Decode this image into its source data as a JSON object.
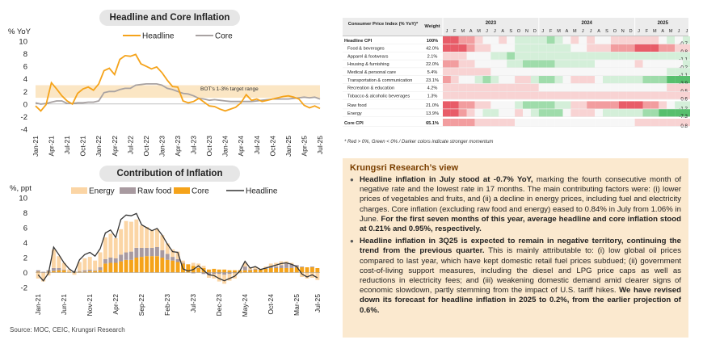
{
  "chart_data": [
    {
      "type": "line",
      "title": "Headline and Core Inflation",
      "ylabel": "% YoY",
      "ylim": [
        -4,
        10
      ],
      "yticks": [
        -4,
        -2,
        0,
        2,
        4,
        6,
        8,
        10
      ],
      "xticks": [
        "Jan-21",
        "Apr-21",
        "Jul-21",
        "Oct-21",
        "Jan-22",
        "Apr-22",
        "Jul-22",
        "Oct-22",
        "Jan-23",
        "Apr-23",
        "Jul-23",
        "Oct-23",
        "Jan-24",
        "Apr-24",
        "Jul-24",
        "Oct-24",
        "Jan-25",
        "Apr-25",
        "Jul-25"
      ],
      "band": {
        "low": 1,
        "high": 3,
        "label": "BOT's 1-3% target range"
      },
      "series": [
        {
          "name": "Headline",
          "color": "#f5a31a",
          "values": [
            -0.3,
            -1.1,
            -0.1,
            3.4,
            2.4,
            1.3,
            0.5,
            0.0,
            1.7,
            2.4,
            2.7,
            2.2,
            3.2,
            5.3,
            5.7,
            4.7,
            7.1,
            7.7,
            7.6,
            7.9,
            6.4,
            6.0,
            5.6,
            5.9,
            5.0,
            3.8,
            2.8,
            2.7,
            0.5,
            0.2,
            0.4,
            0.9,
            0.3,
            -0.3,
            -0.4,
            -0.8,
            -1.1,
            -0.8,
            -0.5,
            0.2,
            1.5,
            0.6,
            0.8,
            0.4,
            0.6,
            0.8,
            1.0,
            1.2,
            1.3,
            1.1,
            0.8,
            -0.2,
            -0.6,
            -0.3,
            -0.7
          ]
        },
        {
          "name": "Core",
          "color": "#a8a2a2",
          "values": [
            0.2,
            0.0,
            0.1,
            0.3,
            0.5,
            0.5,
            0.1,
            0.1,
            0.2,
            0.2,
            0.3,
            0.3,
            0.5,
            1.8,
            2.0,
            2.0,
            2.3,
            2.5,
            2.5,
            3.0,
            3.1,
            3.2,
            3.2,
            3.2,
            3.0,
            2.5,
            2.3,
            2.0,
            1.7,
            1.6,
            1.3,
            0.9,
            0.8,
            0.6,
            0.7,
            0.6,
            0.5,
            0.4,
            0.4,
            0.4,
            0.4,
            0.4,
            0.5,
            0.6,
            0.7,
            0.8,
            0.8,
            0.8,
            0.8,
            0.9,
            1.0,
            1.1,
            1.0,
            1.1,
            0.8
          ]
        }
      ]
    },
    {
      "type": "bar",
      "title": "Contribution of Inflation",
      "ylabel": "%, ppt",
      "ylim": [
        -2,
        10
      ],
      "yticks": [
        -2,
        0,
        2,
        4,
        6,
        8,
        10
      ],
      "xticks": [
        "Jan-21",
        "Jun-21",
        "Nov-21",
        "Apr-22",
        "Sep-22",
        "Feb-23",
        "Jul-23",
        "Dec-23",
        "May-24",
        "Oct-24",
        "Mar-25",
        "Jul-25"
      ],
      "series": [
        {
          "name": "Energy",
          "color": "#fbd5a5",
          "values": [
            -0.8,
            -1.2,
            -0.4,
            2.5,
            1.6,
            0.9,
            0.3,
            -0.3,
            1.2,
            1.6,
            1.7,
            1.3,
            2.0,
            2.9,
            3.2,
            2.7,
            3.4,
            4.2,
            4.0,
            3.8,
            3.0,
            2.8,
            2.4,
            2.4,
            2.0,
            1.4,
            1.0,
            1.0,
            0.3,
            0.0,
            0.4,
            0.6,
            0.3,
            -0.4,
            -0.6,
            -1.0,
            -1.2,
            -0.9,
            -0.7,
            -0.1,
            0.5,
            0.3,
            0.3,
            0.0,
            0.2,
            0.4,
            0.5,
            0.5,
            0.3,
            0.2,
            0.0,
            -0.6,
            -0.8,
            -0.7,
            -1.0
          ]
        },
        {
          "name": "Raw food",
          "color": "#a89aa0",
          "values": [
            0.2,
            0.1,
            0.2,
            0.4,
            0.3,
            0.1,
            0.0,
            0.1,
            0.1,
            0.2,
            0.2,
            0.1,
            0.4,
            0.6,
            0.7,
            0.6,
            0.9,
            1.0,
            1.1,
            1.3,
            1.2,
            1.1,
            1.1,
            1.2,
            1.0,
            0.8,
            0.5,
            0.4,
            0.1,
            0.0,
            -0.1,
            0.0,
            -0.2,
            -0.3,
            -0.2,
            -0.2,
            -0.3,
            -0.2,
            -0.1,
            0.0,
            0.5,
            0.1,
            0.1,
            0.1,
            0.1,
            0.2,
            0.2,
            0.4,
            0.6,
            0.5,
            0.3,
            0.1,
            0.0,
            0.1,
            0.0
          ]
        },
        {
          "name": "Core",
          "color": "#f5a31a",
          "values": [
            0.1,
            0.0,
            0.1,
            0.2,
            0.3,
            0.3,
            0.1,
            0.1,
            0.1,
            0.1,
            0.2,
            0.2,
            0.3,
            1.2,
            1.3,
            1.3,
            1.5,
            1.7,
            1.7,
            2.0,
            2.1,
            2.2,
            2.2,
            2.2,
            2.0,
            1.7,
            1.6,
            1.4,
            1.2,
            1.1,
            0.9,
            0.6,
            0.6,
            0.4,
            0.5,
            0.4,
            0.4,
            0.3,
            0.3,
            0.3,
            0.3,
            0.3,
            0.4,
            0.4,
            0.5,
            0.6,
            0.6,
            0.6,
            0.6,
            0.6,
            0.7,
            0.7,
            0.7,
            0.7,
            0.6
          ]
        },
        {
          "name": "Headline",
          "color": "#333333",
          "values": [
            -0.3,
            -1.1,
            -0.1,
            3.4,
            2.4,
            1.3,
            0.5,
            0.0,
            1.7,
            2.4,
            2.7,
            2.2,
            3.2,
            5.3,
            5.7,
            4.7,
            7.1,
            7.7,
            7.6,
            7.9,
            6.4,
            6.0,
            5.6,
            5.9,
            5.0,
            3.8,
            2.8,
            2.7,
            0.5,
            0.2,
            0.4,
            0.9,
            0.3,
            -0.3,
            -0.4,
            -0.8,
            -1.1,
            -0.8,
            -0.5,
            0.2,
            1.5,
            0.6,
            0.8,
            0.4,
            0.6,
            0.8,
            1.0,
            1.2,
            1.3,
            1.1,
            0.8,
            -0.2,
            -0.6,
            -0.3,
            -0.7
          ]
        }
      ]
    },
    {
      "type": "heatmap",
      "header": {
        "label": "Consumer Price Index (% YoY)*",
        "weight": "Weight"
      },
      "years": [
        "2023",
        "2024",
        "2025"
      ],
      "months": [
        "J",
        "F",
        "M",
        "A",
        "M",
        "J",
        "J",
        "A",
        "S",
        "O",
        "N",
        "D",
        "J",
        "F",
        "M",
        "A",
        "M",
        "J",
        "J",
        "A",
        "S",
        "O",
        "N",
        "D",
        "J",
        "F",
        "M",
        "A",
        "M",
        "J",
        "J"
      ],
      "rows": [
        {
          "name": "Headline CPI",
          "weight": "100%",
          "bold": true,
          "latest": "-0.7",
          "scores": [
            3,
            3,
            2,
            2,
            1,
            0,
            0,
            1,
            0,
            -1,
            -1,
            -1,
            -1,
            -2,
            -1,
            0,
            1,
            0,
            1,
            0,
            0,
            1,
            1,
            1,
            1,
            1,
            1,
            0,
            -1,
            0,
            -1
          ]
        },
        {
          "name": "Food & beverages",
          "weight": "42.0%",
          "bold": false,
          "latest": "0.8",
          "scores": [
            3,
            3,
            3,
            2,
            1,
            1,
            0,
            0,
            0,
            -1,
            -1,
            -1,
            -1,
            -1,
            -1,
            -1,
            0,
            0,
            1,
            1,
            1,
            2,
            2,
            2,
            3,
            3,
            3,
            2,
            2,
            1,
            1
          ]
        },
        {
          "name": "Apparel & footwears",
          "weight": "2.1%",
          "bold": false,
          "latest": "-1.1",
          "scores": [
            1,
            1,
            1,
            0,
            0,
            0,
            -1,
            -1,
            -2,
            -1,
            -1,
            -1,
            -1,
            -1,
            -1,
            -1,
            -1,
            -1,
            -1,
            -1,
            -1,
            -1,
            -1,
            -1,
            -1,
            -1,
            -1,
            -1,
            -1,
            -1,
            -1
          ]
        },
        {
          "name": "Housing & furnishing",
          "weight": "22.0%",
          "bold": false,
          "latest": "-0.2",
          "scores": [
            2,
            2,
            1,
            1,
            0,
            0,
            0,
            0,
            -1,
            -1,
            -2,
            -2,
            -2,
            -2,
            -1,
            -1,
            -1,
            -1,
            -1,
            0,
            0,
            0,
            0,
            0,
            1,
            0,
            0,
            0,
            0,
            0,
            -1
          ]
        },
        {
          "name": "Medical & personal care",
          "weight": "5.4%",
          "bold": false,
          "latest": "-1.1",
          "scores": [
            1,
            1,
            1,
            1,
            1,
            1,
            0,
            0,
            0,
            0,
            0,
            0,
            0,
            0,
            0,
            0,
            0,
            0,
            0,
            0,
            0,
            0,
            0,
            0,
            0,
            0,
            0,
            0,
            -1,
            -1,
            -1
          ]
        },
        {
          "name": "Transportation & communication",
          "weight": "23.1%",
          "bold": false,
          "latest": "-3.9",
          "scores": [
            2,
            1,
            0,
            0,
            -1,
            -2,
            -1,
            0,
            0,
            1,
            1,
            -1,
            -2,
            -2,
            -1,
            0,
            1,
            1,
            1,
            0,
            -1,
            -1,
            -1,
            -1,
            -1,
            -2,
            -2,
            -2,
            -3,
            -3,
            -3
          ]
        },
        {
          "name": "Recreation & education",
          "weight": "4.2%",
          "bold": false,
          "latest": "0.5",
          "scores": [
            1,
            1,
            1,
            1,
            1,
            1,
            1,
            1,
            1,
            1,
            1,
            1,
            0,
            0,
            0,
            0,
            0,
            0,
            0,
            0,
            0,
            0,
            0,
            0,
            0,
            0,
            0,
            0,
            1,
            1,
            1
          ]
        },
        {
          "name": "Tobacco & alcoholic beverages",
          "weight": "1.3%",
          "bold": false,
          "latest": "0.6",
          "scores": [
            1,
            1,
            1,
            1,
            1,
            1,
            1,
            1,
            1,
            1,
            1,
            1,
            1,
            1,
            1,
            1,
            1,
            1,
            1,
            1,
            1,
            1,
            1,
            1,
            1,
            1,
            1,
            1,
            1,
            1,
            1
          ]
        },
        {
          "name": "Raw food",
          "weight": "21.0%",
          "bold": false,
          "latest": "-1.2",
          "scores": [
            3,
            3,
            2,
            2,
            1,
            1,
            0,
            0,
            0,
            -1,
            -2,
            -2,
            -2,
            -2,
            -1,
            -1,
            1,
            1,
            2,
            2,
            2,
            2,
            3,
            3,
            3,
            2,
            2,
            1,
            0,
            -1,
            -1
          ]
        },
        {
          "name": "Energy",
          "weight": "13.9%",
          "bold": false,
          "latest": "-7.3",
          "scores": [
            3,
            3,
            2,
            1,
            0,
            -1,
            -1,
            0,
            0,
            1,
            0,
            -1,
            -2,
            -2,
            -2,
            0,
            1,
            1,
            1,
            0,
            -1,
            -1,
            -1,
            -1,
            -1,
            -2,
            -2,
            -3,
            -3,
            -3,
            -3
          ]
        },
        {
          "name": "Core CPI",
          "weight": "65.1%",
          "bold": true,
          "latest": "0.8",
          "scores": [
            2,
            2,
            2,
            2,
            1,
            1,
            1,
            1,
            1,
            0,
            0,
            0,
            0,
            0,
            0,
            0,
            0,
            0,
            0,
            0,
            0,
            0,
            0,
            0,
            1,
            1,
            1,
            1,
            1,
            1,
            1
          ]
        }
      ]
    }
  ],
  "heat_note": "* Red > 0%, Green < 0% / Darker colors indicate stronger momentum",
  "source": "Source: MOC, CEIC, Krungsri Research",
  "view": {
    "title": "Krungsri Research’s view",
    "p1_bold": "Headline inflation in July stood at -0.7% YoY,",
    "p1_text": " marking the fourth consecutive month of negative rate and the lowest rate in 17 months. The main contributing factors were: (i) lower prices of vegetables and fruits, and (ii) a decline in energy prices, including fuel and electricity charges. Core inflation (excluding raw food and energy) eased to 0.84% in July from 1.06% in June. ",
    "p1_bold2": "For the first seven months of this year, average headline and core inflation stood at 0.21% and 0.95%, respectively.",
    "p2_bold": "Headline inflation in 3Q25 is expected to remain in negative territory, continuing the trend from the previous quarter.",
    "p2_text": " This is mainly attributable to: (i) low global oil prices compared to last year, which have kept domestic retail fuel prices subdued; (ii) government cost-of-living support measures, including the diesel and LPG price caps as well as reductions in electricity fees; and (iii) weakening domestic demand amid clearer signs of economic slowdown, partly stemming from the impact of U.S. tariff hikes. ",
    "p2_bold2": "We have revised down its forecast for headline inflation in 2025 to 0.2%, from the earlier projection of 0.6%."
  }
}
